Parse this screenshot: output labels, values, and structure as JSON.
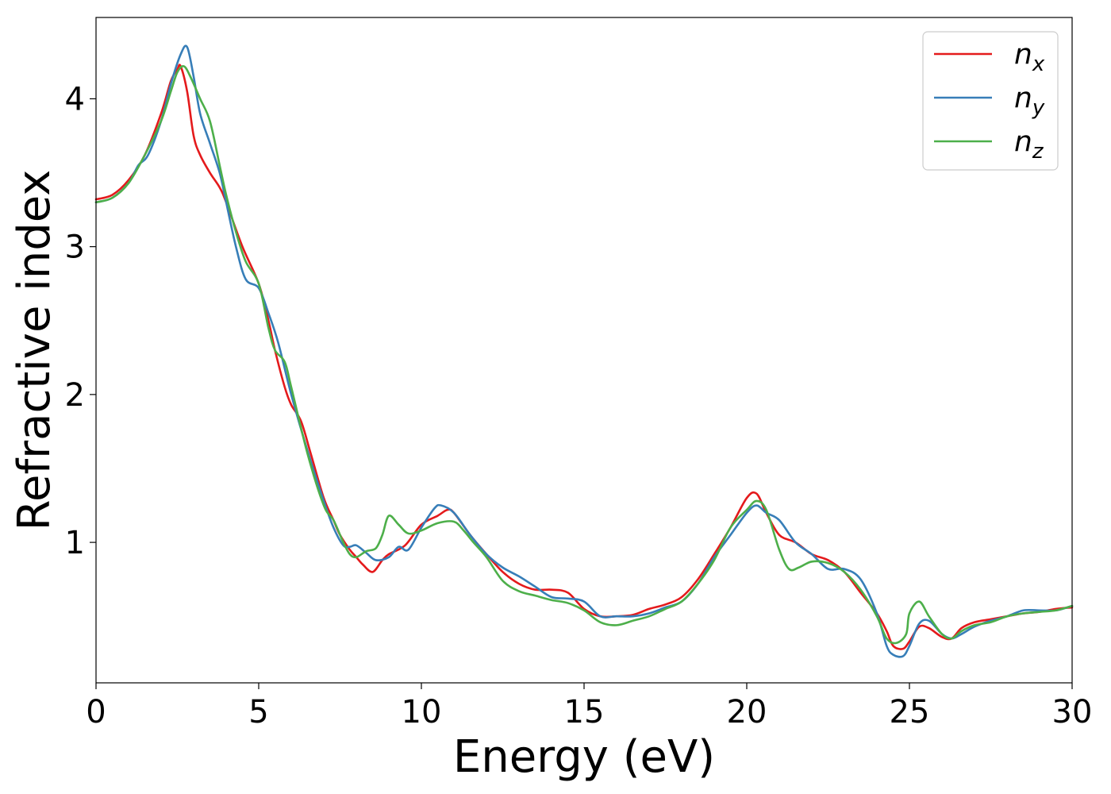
{
  "chart_data": {
    "type": "line",
    "title": "",
    "xlabel": "Energy (eV)",
    "ylabel": "Refractive index",
    "xlim": [
      0,
      30
    ],
    "ylim": [
      0.05,
      4.55
    ],
    "xticks": [
      0,
      5,
      10,
      15,
      20,
      25,
      30
    ],
    "xtick_labels": [
      "0",
      "5",
      "10",
      "15",
      "20",
      "25",
      "30"
    ],
    "yticks": [
      1,
      2,
      3,
      4
    ],
    "ytick_labels": [
      "1",
      "2",
      "3",
      "4"
    ],
    "grid": false,
    "legend_position": "top-right",
    "series": [
      {
        "name": "n_x",
        "label_main": "n",
        "label_sub": "x",
        "color": "#e41a1c",
        "x": [
          0,
          0.5,
          1.0,
          1.5,
          2.0,
          2.3,
          2.5,
          2.6,
          2.8,
          3.0,
          3.2,
          3.5,
          3.8,
          4.0,
          4.5,
          5.0,
          5.3,
          5.5,
          5.8,
          6.0,
          6.3,
          6.6,
          7.0,
          7.3,
          7.5,
          7.8,
          8.0,
          8.2,
          8.5,
          8.8,
          9.0,
          9.5,
          10.0,
          10.5,
          10.8,
          11.0,
          11.5,
          12.0,
          12.5,
          13.0,
          13.5,
          14.0,
          14.5,
          15.0,
          15.5,
          16.0,
          16.5,
          17.0,
          17.5,
          18.0,
          18.5,
          19.0,
          19.5,
          20.0,
          20.3,
          20.6,
          21.0,
          21.5,
          22.0,
          22.5,
          23.0,
          23.5,
          24.0,
          24.3,
          24.5,
          24.8,
          25.0,
          25.3,
          25.6,
          26.0,
          26.3,
          26.6,
          27.0,
          27.5,
          28.0,
          28.5,
          29.0,
          29.5,
          30.0
        ],
        "y": [
          3.32,
          3.35,
          3.45,
          3.62,
          3.9,
          4.12,
          4.2,
          4.22,
          4.05,
          3.75,
          3.62,
          3.5,
          3.4,
          3.3,
          3.0,
          2.75,
          2.5,
          2.3,
          2.05,
          1.93,
          1.82,
          1.6,
          1.3,
          1.15,
          1.05,
          0.95,
          0.9,
          0.85,
          0.8,
          0.88,
          0.92,
          0.98,
          1.12,
          1.18,
          1.22,
          1.2,
          1.05,
          0.92,
          0.8,
          0.72,
          0.68,
          0.68,
          0.66,
          0.55,
          0.5,
          0.5,
          0.51,
          0.55,
          0.58,
          0.63,
          0.75,
          0.92,
          1.1,
          1.3,
          1.33,
          1.2,
          1.05,
          1.0,
          0.92,
          0.88,
          0.8,
          0.66,
          0.52,
          0.4,
          0.3,
          0.28,
          0.33,
          0.43,
          0.42,
          0.36,
          0.35,
          0.42,
          0.46,
          0.48,
          0.5,
          0.52,
          0.53,
          0.55,
          0.56
        ]
      },
      {
        "name": "n_y",
        "label_main": "n",
        "label_sub": "y",
        "color": "#377eb8",
        "x": [
          0,
          0.5,
          1.0,
          1.3,
          1.6,
          2.0,
          2.3,
          2.6,
          2.8,
          3.0,
          3.2,
          3.5,
          3.8,
          4.0,
          4.3,
          4.6,
          5.0,
          5.3,
          5.6,
          6.0,
          6.5,
          7.0,
          7.3,
          7.6,
          7.8,
          8.0,
          8.3,
          8.6,
          9.0,
          9.3,
          9.6,
          10.0,
          10.4,
          10.6,
          11.0,
          11.5,
          12.0,
          12.5,
          13.0,
          13.5,
          14.0,
          14.5,
          15.0,
          15.5,
          16.0,
          16.5,
          17.0,
          17.5,
          18.0,
          18.5,
          19.0,
          19.5,
          20.0,
          20.3,
          20.6,
          21.0,
          21.5,
          22.0,
          22.5,
          23.0,
          23.5,
          24.0,
          24.3,
          24.5,
          24.8,
          25.0,
          25.3,
          25.6,
          26.0,
          26.3,
          26.6,
          27.0,
          27.5,
          28.0,
          28.5,
          29.0,
          29.5,
          30.0
        ],
        "y": [
          3.3,
          3.33,
          3.43,
          3.55,
          3.62,
          3.85,
          4.1,
          4.3,
          4.35,
          4.15,
          3.9,
          3.7,
          3.5,
          3.3,
          3.0,
          2.78,
          2.72,
          2.55,
          2.35,
          2.0,
          1.62,
          1.28,
          1.1,
          0.98,
          0.97,
          0.98,
          0.93,
          0.88,
          0.9,
          0.97,
          0.95,
          1.1,
          1.23,
          1.25,
          1.2,
          1.05,
          0.92,
          0.83,
          0.77,
          0.7,
          0.63,
          0.62,
          0.6,
          0.5,
          0.5,
          0.5,
          0.52,
          0.56,
          0.6,
          0.72,
          0.9,
          1.05,
          1.2,
          1.25,
          1.2,
          1.15,
          1.0,
          0.92,
          0.82,
          0.82,
          0.75,
          0.52,
          0.3,
          0.24,
          0.23,
          0.3,
          0.45,
          0.47,
          0.38,
          0.35,
          0.38,
          0.43,
          0.47,
          0.5,
          0.54,
          0.54,
          0.54,
          0.57
        ]
      },
      {
        "name": "n_z",
        "label_main": "n",
        "label_sub": "z",
        "color": "#4daf4a",
        "x": [
          0,
          0.5,
          1.0,
          1.5,
          2.0,
          2.3,
          2.5,
          2.7,
          2.9,
          3.2,
          3.5,
          3.8,
          4.0,
          4.3,
          4.6,
          5.0,
          5.3,
          5.5,
          5.8,
          6.0,
          6.5,
          7.0,
          7.3,
          7.6,
          7.8,
          8.0,
          8.3,
          8.6,
          8.8,
          9.0,
          9.3,
          9.6,
          10.0,
          10.5,
          11.0,
          11.3,
          11.6,
          12.0,
          12.5,
          13.0,
          13.5,
          14.0,
          14.5,
          15.0,
          15.5,
          16.0,
          16.5,
          17.0,
          17.5,
          18.0,
          18.5,
          19.0,
          19.5,
          20.0,
          20.3,
          20.6,
          21.0,
          21.3,
          21.6,
          22.0,
          22.5,
          23.0,
          23.5,
          24.0,
          24.3,
          24.6,
          24.9,
          25.0,
          25.3,
          25.6,
          26.0,
          26.3,
          26.6,
          27.0,
          27.5,
          28.0,
          28.5,
          29.0,
          29.5,
          30.0
        ],
        "y": [
          3.3,
          3.33,
          3.43,
          3.62,
          3.85,
          4.05,
          4.18,
          4.22,
          4.15,
          4.0,
          3.85,
          3.55,
          3.35,
          3.1,
          2.9,
          2.75,
          2.45,
          2.3,
          2.22,
          2.05,
          1.6,
          1.25,
          1.15,
          1.0,
          0.92,
          0.9,
          0.94,
          0.96,
          1.05,
          1.18,
          1.12,
          1.06,
          1.08,
          1.13,
          1.14,
          1.08,
          1.0,
          0.9,
          0.74,
          0.67,
          0.64,
          0.61,
          0.59,
          0.54,
          0.46,
          0.44,
          0.47,
          0.5,
          0.55,
          0.6,
          0.72,
          0.88,
          1.1,
          1.22,
          1.28,
          1.22,
          0.95,
          0.82,
          0.83,
          0.87,
          0.86,
          0.8,
          0.68,
          0.5,
          0.35,
          0.32,
          0.38,
          0.52,
          0.6,
          0.5,
          0.38,
          0.35,
          0.4,
          0.44,
          0.46,
          0.5,
          0.52,
          0.53,
          0.54,
          0.57
        ]
      }
    ]
  }
}
